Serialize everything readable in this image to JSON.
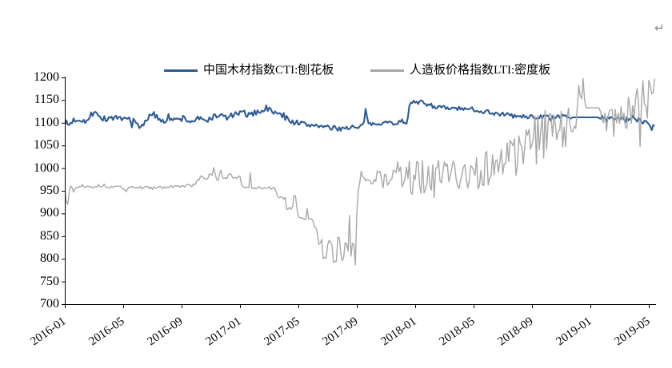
{
  "page": {
    "return_mark": "↵"
  },
  "legend": [
    {
      "label": "中国木材指数CTI:刨花板",
      "color": "#2F5B94"
    },
    {
      "label": "人造板价格指数LTI:密度板",
      "color": "#A8A8A8"
    }
  ],
  "chart_data": {
    "type": "line",
    "title": "",
    "xlabel": "",
    "ylabel": "",
    "grid": false,
    "legend_position": "top",
    "ylim": [
      700,
      1200
    ],
    "y_ticks": [
      700,
      750,
      800,
      850,
      900,
      950,
      1000,
      1050,
      1100,
      1150,
      1200
    ],
    "x_tick_labels": [
      "2016-01",
      "2016-05",
      "2016-09",
      "2017-01",
      "2017-05",
      "2017-09",
      "2018-01",
      "2018-05",
      "2018-09",
      "2019-01",
      "2019-05"
    ],
    "x_tick_months": [
      0,
      4,
      8,
      12,
      16,
      20,
      24,
      28,
      32,
      36,
      40
    ],
    "x_range_months": [
      0,
      40.42
    ],
    "series": [
      {
        "name": "中国木材指数CTI:刨花板",
        "color": "#2F5B94",
        "width": 2.1,
        "anchors": [
          [
            0,
            1102
          ],
          [
            0.25,
            1094
          ],
          [
            0.6,
            1106
          ],
          [
            1,
            1108
          ],
          [
            1.6,
            1104
          ],
          [
            2.1,
            1130
          ],
          [
            2.35,
            1112
          ],
          [
            2.8,
            1108
          ],
          [
            3.3,
            1112
          ],
          [
            3.8,
            1104
          ],
          [
            4.3,
            1110
          ],
          [
            4.8,
            1100
          ],
          [
            5.2,
            1089
          ],
          [
            5.6,
            1110
          ],
          [
            6.1,
            1117
          ],
          [
            6.6,
            1107
          ],
          [
            7.1,
            1112
          ],
          [
            7.6,
            1104
          ],
          [
            8.1,
            1111
          ],
          [
            8.6,
            1102
          ],
          [
            9.1,
            1109
          ],
          [
            9.6,
            1104
          ],
          [
            10.1,
            1112
          ],
          [
            10.6,
            1117
          ],
          [
            11.1,
            1111
          ],
          [
            11.6,
            1118
          ],
          [
            12.1,
            1121
          ],
          [
            12.6,
            1117
          ],
          [
            13.2,
            1124
          ],
          [
            13.8,
            1131
          ],
          [
            14.2,
            1126
          ],
          [
            14.7,
            1118
          ],
          [
            15.2,
            1110
          ],
          [
            15.7,
            1101
          ],
          [
            16.2,
            1099
          ],
          [
            16.7,
            1094
          ],
          [
            17.2,
            1096
          ],
          [
            17.7,
            1091
          ],
          [
            18.2,
            1088
          ],
          [
            18.7,
            1087
          ],
          [
            19.2,
            1089
          ],
          [
            19.7,
            1091
          ],
          [
            20.1,
            1087
          ],
          [
            20.45,
            1096
          ],
          [
            20.6,
            1126
          ],
          [
            20.75,
            1096
          ],
          [
            21.1,
            1098
          ],
          [
            21.6,
            1100
          ],
          [
            22.1,
            1101
          ],
          [
            22.6,
            1099
          ],
          [
            23.1,
            1102
          ],
          [
            23.45,
            1100
          ],
          [
            23.6,
            1142
          ],
          [
            23.8,
            1148
          ],
          [
            24.1,
            1142
          ],
          [
            24.5,
            1146
          ],
          [
            24.9,
            1140
          ],
          [
            25.4,
            1136
          ],
          [
            25.9,
            1133
          ],
          [
            26.4,
            1130
          ],
          [
            26.9,
            1132
          ],
          [
            27.4,
            1128
          ],
          [
            27.9,
            1131
          ],
          [
            28.4,
            1126
          ],
          [
            28.9,
            1125
          ],
          [
            29.4,
            1121
          ],
          [
            29.9,
            1119
          ],
          [
            30.4,
            1117
          ],
          [
            30.9,
            1114
          ],
          [
            31.4,
            1113
          ],
          [
            31.9,
            1114
          ],
          [
            32.4,
            1112
          ],
          [
            32.9,
            1113
          ],
          [
            33.4,
            1112
          ],
          [
            33.9,
            1113
          ],
          [
            34.4,
            1112
          ],
          [
            34.75,
            1112
          ],
          [
            36.6,
            1112
          ],
          [
            36.9,
            1109
          ],
          [
            37.4,
            1112
          ],
          [
            37.9,
            1109
          ],
          [
            38.4,
            1107
          ],
          [
            38.9,
            1110
          ],
          [
            39.4,
            1107
          ],
          [
            39.9,
            1102
          ],
          [
            40.2,
            1090
          ],
          [
            40.42,
            1097
          ]
        ],
        "noise": [
          [
            0,
            7
          ],
          [
            2,
            7
          ],
          [
            5,
            8
          ],
          [
            12,
            6
          ],
          [
            14,
            6
          ],
          [
            16,
            6
          ],
          [
            20,
            5
          ],
          [
            23.45,
            4
          ],
          [
            23.7,
            5
          ],
          [
            25,
            5
          ],
          [
            28,
            5
          ],
          [
            31,
            5
          ],
          [
            33,
            5
          ],
          [
            34.6,
            4
          ],
          [
            34.85,
            0
          ],
          [
            36.5,
            0
          ],
          [
            36.75,
            5
          ],
          [
            38,
            6
          ],
          [
            40.42,
            8
          ]
        ]
      },
      {
        "name": "人造板价格指数LTI:密度板",
        "color": "#A8A8A8",
        "width": 1.4,
        "anchors": [
          [
            0,
            950
          ],
          [
            0.2,
            938
          ],
          [
            0.35,
            962
          ],
          [
            0.6,
            950
          ],
          [
            0.9,
            960
          ],
          [
            1.4,
            962
          ],
          [
            2,
            960
          ],
          [
            2.6,
            962
          ],
          [
            3.2,
            958
          ],
          [
            3.8,
            960
          ],
          [
            4.2,
            950
          ],
          [
            4.5,
            958
          ],
          [
            5,
            957
          ],
          [
            6,
            957
          ],
          [
            7,
            958
          ],
          [
            8,
            960
          ],
          [
            8.9,
            962
          ],
          [
            9.15,
            977
          ],
          [
            10,
            980
          ],
          [
            10.25,
            995
          ],
          [
            10.45,
            972
          ],
          [
            10.65,
            1000
          ],
          [
            10.85,
            978
          ],
          [
            11.3,
            983
          ],
          [
            12,
            979
          ],
          [
            12.15,
            957
          ],
          [
            12.6,
            956
          ],
          [
            12.7,
            987
          ],
          [
            12.8,
            956
          ],
          [
            13.6,
            957
          ],
          [
            14.4,
            955
          ],
          [
            14.55,
            938
          ],
          [
            15.1,
            936
          ],
          [
            15.2,
            910
          ],
          [
            15.6,
            912
          ],
          [
            15.7,
            935
          ],
          [
            15.85,
            934
          ],
          [
            15.95,
            890
          ],
          [
            16.5,
            890
          ],
          [
            16.6,
            910
          ],
          [
            16.7,
            888
          ],
          [
            16.95,
            890
          ],
          [
            17.05,
            866
          ],
          [
            17.25,
            868
          ],
          [
            17.35,
            838
          ],
          [
            17.6,
            842
          ],
          [
            17.7,
            800
          ],
          [
            17.95,
            802
          ],
          [
            18.05,
            840
          ],
          [
            18.3,
            838
          ],
          [
            18.4,
            793
          ],
          [
            18.6,
            795
          ],
          [
            18.7,
            843
          ],
          [
            18.85,
            840
          ],
          [
            18.95,
            800
          ],
          [
            19.1,
            800
          ],
          [
            19.2,
            836
          ],
          [
            19.35,
            832
          ],
          [
            19.45,
            798
          ],
          [
            19.52,
            925
          ],
          [
            19.6,
            800
          ],
          [
            19.72,
            840
          ],
          [
            19.8,
            836
          ],
          [
            19.88,
            765
          ],
          [
            19.98,
            885
          ],
          [
            20.1,
            955
          ],
          [
            20.3,
            985
          ],
          [
            20.6,
            980
          ],
          [
            21,
            978
          ],
          [
            21.5,
            985
          ],
          [
            21.9,
            975
          ],
          [
            23,
            975
          ],
          [
            24,
            982
          ],
          [
            25,
            975
          ],
          [
            26,
            978
          ],
          [
            27,
            985
          ],
          [
            28,
            992
          ],
          [
            29,
            1002
          ],
          [
            30,
            1012
          ],
          [
            31,
            1032
          ],
          [
            32,
            1056
          ],
          [
            33,
            1072
          ],
          [
            34,
            1082
          ],
          [
            35,
            1092
          ],
          [
            35.15,
            1150
          ],
          [
            35.25,
            1195
          ],
          [
            35.35,
            1140
          ],
          [
            35.5,
            1198
          ],
          [
            35.65,
            1133
          ],
          [
            36.6,
            1133
          ],
          [
            36.85,
            1100
          ],
          [
            37.1,
            1110
          ],
          [
            38,
            1105
          ],
          [
            39,
            1110
          ],
          [
            39.25,
            1190
          ],
          [
            39.4,
            1085
          ],
          [
            39.55,
            1180
          ],
          [
            39.7,
            1105
          ],
          [
            39.9,
            1120
          ],
          [
            40.1,
            1195
          ],
          [
            40.25,
            1115
          ],
          [
            40.42,
            1198
          ]
        ],
        "noise": [
          [
            0,
            12
          ],
          [
            0.5,
            8
          ],
          [
            1,
            5
          ],
          [
            2,
            4
          ],
          [
            3,
            3
          ],
          [
            8,
            3
          ],
          [
            9,
            4
          ],
          [
            10,
            8
          ],
          [
            11.2,
            5
          ],
          [
            12,
            3
          ],
          [
            14.4,
            3
          ],
          [
            15,
            5
          ],
          [
            16,
            5
          ],
          [
            17,
            6
          ],
          [
            17.6,
            8
          ],
          [
            19.4,
            8
          ],
          [
            19.9,
            5
          ],
          [
            20.2,
            8
          ],
          [
            20.8,
            12
          ],
          [
            21.5,
            20
          ],
          [
            21.9,
            35
          ],
          [
            23,
            38
          ],
          [
            24,
            40
          ],
          [
            25,
            42
          ],
          [
            26,
            45
          ],
          [
            27,
            45
          ],
          [
            28,
            45
          ],
          [
            29,
            46
          ],
          [
            30,
            48
          ],
          [
            31,
            55
          ],
          [
            32,
            60
          ],
          [
            33,
            58
          ],
          [
            34,
            56
          ],
          [
            34.9,
            50
          ],
          [
            35.1,
            20
          ],
          [
            35.3,
            12
          ],
          [
            35.6,
            4
          ],
          [
            35.75,
            0
          ],
          [
            36.55,
            0
          ],
          [
            36.8,
            25
          ],
          [
            37.2,
            38
          ],
          [
            38,
            42
          ],
          [
            39,
            44
          ],
          [
            39.2,
            35
          ],
          [
            39.45,
            40
          ],
          [
            40,
            42
          ],
          [
            40.42,
            25
          ]
        ]
      }
    ]
  }
}
